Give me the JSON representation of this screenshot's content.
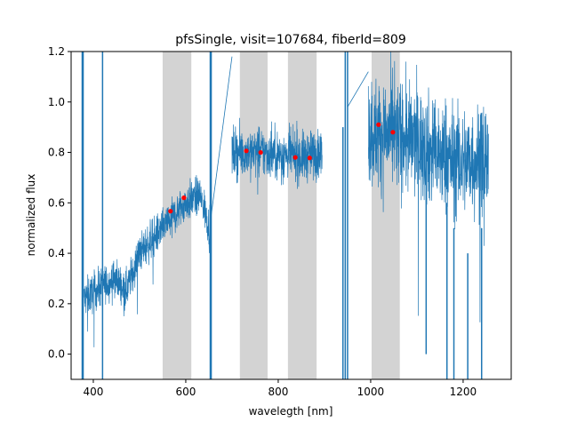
{
  "chart_data": {
    "type": "line",
    "title": "pfsSingle, visit=107684, fiberId=809",
    "xlabel": "waveleg­th [nm]",
    "ylabel": "normalized flux",
    "xlim": [
      352,
      1304
    ],
    "ylim": [
      -0.1,
      1.2
    ],
    "xticks": [
      400,
      600,
      800,
      1000,
      1200
    ],
    "yticks": [
      0.0,
      0.2,
      0.4,
      0.6,
      0.8,
      1.0,
      1.2
    ],
    "xtick_labels": [
      "400",
      "600",
      "800",
      "1000",
      "1200"
    ],
    "ytick_labels": [
      "0.0",
      "0.2",
      "0.4",
      "0.6",
      "0.8",
      "1.0",
      "1.2"
    ],
    "grid": false,
    "colors": {
      "spectrum": "#1f77b4",
      "points": "#ff0000",
      "bands": "#d3d3d3"
    },
    "shaded_bands": [
      [
        550,
        612
      ],
      [
        717,
        777
      ],
      [
        821,
        883
      ],
      [
        1002,
        1063
      ]
    ],
    "spectrum_segments": [
      {
        "arm": "blue",
        "knots": [
          [
            380,
            0.22
          ],
          [
            420,
            0.27
          ],
          [
            450,
            0.3
          ],
          [
            470,
            0.25
          ],
          [
            500,
            0.4
          ],
          [
            550,
            0.5
          ],
          [
            600,
            0.6
          ],
          [
            630,
            0.63
          ],
          [
            645,
            0.55
          ],
          [
            655,
            0.45
          ]
        ],
        "noise": 0.07
      },
      {
        "arm": "red",
        "knots": [
          [
            700,
            0.8
          ],
          [
            760,
            0.8
          ],
          [
            800,
            0.79
          ],
          [
            850,
            0.78
          ],
          [
            895,
            0.8
          ]
        ],
        "noise": 0.09
      },
      {
        "arm": "nir",
        "knots": [
          [
            995,
            0.88
          ],
          [
            1050,
            0.87
          ],
          [
            1100,
            0.84
          ],
          [
            1150,
            0.78
          ],
          [
            1200,
            0.76
          ],
          [
            1255,
            0.78
          ]
        ],
        "noise": 0.2
      }
    ],
    "connectors": [
      [
        [
          655,
          0.55
        ],
        [
          700,
          1.18
        ]
      ],
      [
        [
          950,
          0.98
        ],
        [
          995,
          1.12
        ]
      ]
    ],
    "spikes": [
      [
        376,
        -0.1,
        1.2
      ],
      [
        378,
        -0.1,
        1.2
      ],
      [
        420,
        -0.1,
        1.2
      ],
      [
        653,
        -0.1,
        1.2
      ],
      [
        655,
        -0.1,
        1.2
      ],
      [
        940,
        -0.1,
        0.9
      ],
      [
        945,
        -0.1,
        1.2
      ],
      [
        950,
        -0.1,
        1.2
      ],
      [
        1120,
        0.0,
        0.8
      ],
      [
        1165,
        -0.1,
        0.6
      ],
      [
        1180,
        -0.1,
        0.5
      ],
      [
        1210,
        -0.1,
        0.4
      ],
      [
        1240,
        -0.1,
        0.5
      ]
    ],
    "points": {
      "x": [
        567,
        596,
        731,
        762,
        837,
        868,
        1017,
        1048
      ],
      "y": [
        0.567,
        0.62,
        0.806,
        0.8,
        0.78,
        0.778,
        0.91,
        0.88
      ]
    }
  }
}
